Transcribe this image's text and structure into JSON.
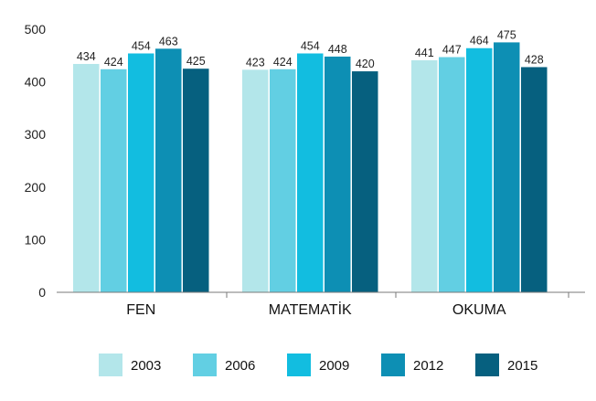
{
  "chart_data": {
    "type": "bar",
    "title": "",
    "xlabel": "",
    "ylabel": "",
    "ylim": [
      0,
      500
    ],
    "yticks": [
      0,
      100,
      200,
      300,
      400,
      500
    ],
    "categories": [
      "FEN",
      "MATEMATİK",
      "OKUMA"
    ],
    "series": [
      {
        "name": "2003",
        "color": "#b3e6ea",
        "values": [
          434,
          423,
          441
        ]
      },
      {
        "name": "2006",
        "color": "#62cfe3",
        "values": [
          424,
          424,
          447
        ]
      },
      {
        "name": "2009",
        "color": "#12bde0",
        "values": [
          454,
          454,
          464
        ]
      },
      {
        "name": "2012",
        "color": "#0d8fb4",
        "values": [
          463,
          448,
          475
        ]
      },
      {
        "name": "2015",
        "color": "#06607f",
        "values": [
          425,
          420,
          428
        ]
      }
    ],
    "grid": false,
    "legend_position": "bottom"
  }
}
